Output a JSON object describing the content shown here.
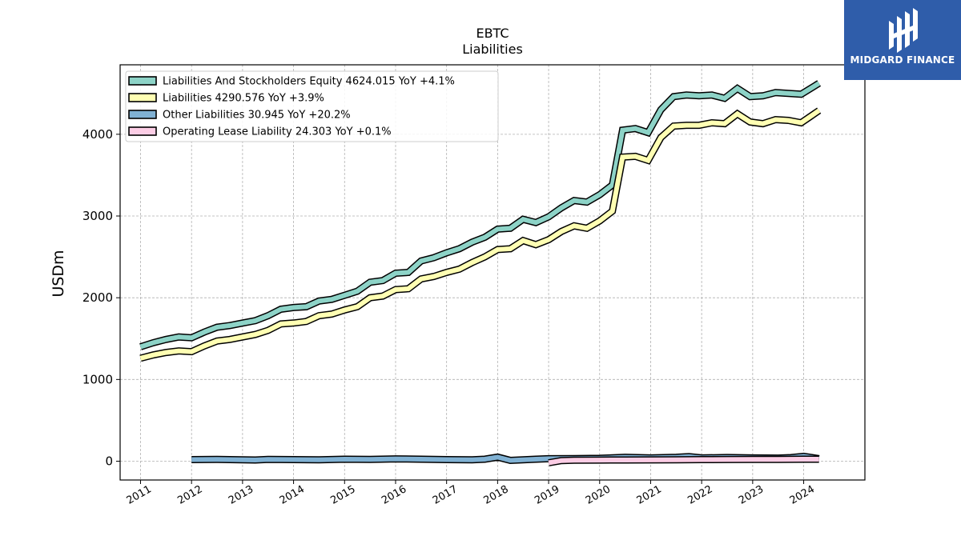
{
  "brand": {
    "name": "MIDGARD FINANCE",
    "logo_icon": "midgard-logo-icon",
    "bg_color": "#2f5daa"
  },
  "chart_data": {
    "type": "line",
    "title": "EBTC",
    "subtitle": "Liabilities",
    "ylabel": "USDm",
    "xlim": [
      2010.6,
      2025.2
    ],
    "ylim": [
      -230,
      4850
    ],
    "yticks": [
      0,
      1000,
      2000,
      3000,
      4000
    ],
    "ytick_labels": [
      "0",
      "1000",
      "2000",
      "3000",
      "4000"
    ],
    "xticks": [
      2011,
      2012,
      2013,
      2014,
      2015,
      2016,
      2017,
      2018,
      2019,
      2020,
      2021,
      2022,
      2023,
      2024
    ],
    "xtick_labels": [
      "2011",
      "2012",
      "2013",
      "2014",
      "2015",
      "2016",
      "2017",
      "2018",
      "2019",
      "2020",
      "2021",
      "2022",
      "2023",
      "2024"
    ],
    "grid": true,
    "legend_position": "top-left",
    "series": [
      {
        "name": "Liabilities And Stockholders Equity",
        "legend_label": "Liabilities And Stockholders Equity  4624.015 YoY +4.1%",
        "color": "#8dd3c7",
        "x": [
          2011.0,
          2011.25,
          2011.5,
          2011.75,
          2012.0,
          2012.25,
          2012.5,
          2012.75,
          2013.0,
          2013.25,
          2013.5,
          2013.75,
          2014.0,
          2014.25,
          2014.5,
          2014.75,
          2015.0,
          2015.25,
          2015.5,
          2015.75,
          2016.0,
          2016.25,
          2016.5,
          2016.75,
          2017.0,
          2017.25,
          2017.5,
          2017.75,
          2018.0,
          2018.25,
          2018.5,
          2018.75,
          2019.0,
          2019.25,
          2019.5,
          2019.75,
          2020.0,
          2020.25,
          2020.45,
          2020.7,
          2020.95,
          2021.2,
          2021.45,
          2021.7,
          2021.95,
          2022.2,
          2022.45,
          2022.7,
          2022.95,
          2023.2,
          2023.45,
          2023.7,
          2023.95,
          2024.3
        ],
        "y": [
          1400,
          1450,
          1490,
          1520,
          1510,
          1580,
          1640,
          1660,
          1690,
          1720,
          1780,
          1860,
          1880,
          1890,
          1960,
          1980,
          2030,
          2080,
          2190,
          2210,
          2300,
          2310,
          2450,
          2490,
          2550,
          2600,
          2680,
          2740,
          2840,
          2850,
          2960,
          2920,
          2990,
          3100,
          3190,
          3170,
          3260,
          3380,
          4050,
          4070,
          4020,
          4300,
          4460,
          4480,
          4470,
          4480,
          4440,
          4560,
          4460,
          4470,
          4510,
          4500,
          4490,
          4624
        ]
      },
      {
        "name": "Liabilities",
        "legend_label": "Liabilities  4290.576 YoY +3.9%",
        "color": "#ffffb3",
        "x": [
          2011.0,
          2011.25,
          2011.5,
          2011.75,
          2012.0,
          2012.25,
          2012.5,
          2012.75,
          2013.0,
          2013.25,
          2013.5,
          2013.75,
          2014.0,
          2014.25,
          2014.5,
          2014.75,
          2015.0,
          2015.25,
          2015.5,
          2015.75,
          2016.0,
          2016.25,
          2016.5,
          2016.75,
          2017.0,
          2017.25,
          2017.5,
          2017.75,
          2018.0,
          2018.25,
          2018.5,
          2018.75,
          2019.0,
          2019.25,
          2019.5,
          2019.75,
          2020.0,
          2020.25,
          2020.45,
          2020.7,
          2020.95,
          2021.2,
          2021.45,
          2021.7,
          2021.95,
          2022.2,
          2022.45,
          2022.7,
          2022.95,
          2023.2,
          2023.45,
          2023.7,
          2023.95,
          2024.3
        ],
        "y": [
          1260,
          1300,
          1330,
          1350,
          1340,
          1410,
          1470,
          1490,
          1520,
          1550,
          1600,
          1680,
          1690,
          1710,
          1780,
          1800,
          1850,
          1890,
          2000,
          2020,
          2100,
          2110,
          2230,
          2260,
          2310,
          2350,
          2430,
          2500,
          2590,
          2600,
          2700,
          2650,
          2710,
          2810,
          2880,
          2850,
          2940,
          3060,
          3720,
          3730,
          3680,
          3960,
          4100,
          4110,
          4110,
          4140,
          4130,
          4250,
          4150,
          4130,
          4180,
          4170,
          4140,
          4290.576
        ]
      },
      {
        "name": "Other Liabilities",
        "legend_label": "Other Liabilities  30.945 YoY +20.2%",
        "color": "#80b1d3",
        "x": [
          2012.0,
          2012.5,
          2013.0,
          2013.25,
          2013.5,
          2014.0,
          2014.5,
          2015.0,
          2015.5,
          2016.0,
          2016.5,
          2017.0,
          2017.5,
          2017.75,
          2018.0,
          2018.25,
          2018.75,
          2019.0,
          2019.5,
          2020.0,
          2020.5,
          2021.0,
          2021.5,
          2021.75,
          2022.0,
          2022.5,
          2023.0,
          2023.5,
          2023.75,
          2024.0,
          2024.3
        ],
        "y": [
          20,
          22,
          18,
          15,
          22,
          20,
          18,
          24,
          22,
          28,
          24,
          20,
          18,
          24,
          50,
          10,
          24,
          30,
          32,
          35,
          48,
          40,
          48,
          56,
          40,
          45,
          40,
          38,
          44,
          60,
          31
        ]
      },
      {
        "name": "Operating Lease Liability",
        "legend_label": "Operating Lease Liability  24.303 YoY +0.1%",
        "color": "#fccde5",
        "x": [
          2019.0,
          2019.25,
          2019.5,
          2020.0,
          2020.5,
          2021.0,
          2021.5,
          2022.0,
          2022.5,
          2023.0,
          2023.5,
          2024.0,
          2024.3
        ],
        "y": [
          -20,
          8,
          12,
          14,
          15,
          16,
          18,
          20,
          21,
          22,
          23,
          24,
          24.303
        ]
      }
    ]
  }
}
